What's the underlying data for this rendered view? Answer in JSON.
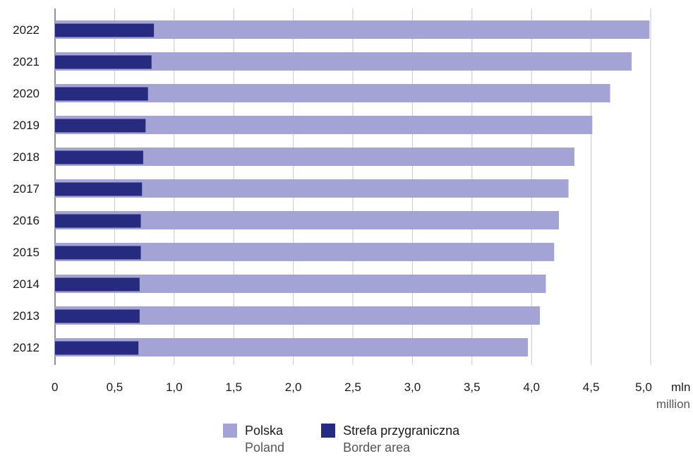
{
  "chart_data": {
    "type": "bar",
    "orientation": "horizontal",
    "categories": [
      "2022",
      "2021",
      "2020",
      "2019",
      "2018",
      "2017",
      "2016",
      "2015",
      "2014",
      "2013",
      "2012"
    ],
    "series": [
      {
        "name": "Polska",
        "name_en": "Poland",
        "color": "#a4a3d6",
        "values": [
          4.99,
          4.84,
          4.66,
          4.51,
          4.36,
          4.31,
          4.23,
          4.19,
          4.12,
          4.07,
          3.97
        ]
      },
      {
        "name": "Strefa przygraniczna",
        "name_en": "Border area",
        "color": "#262b80",
        "values": [
          0.83,
          0.81,
          0.78,
          0.76,
          0.74,
          0.73,
          0.72,
          0.72,
          0.71,
          0.71,
          0.7
        ]
      }
    ],
    "xticks": [
      "0",
      "0,5",
      "1,0",
      "1,5",
      "2,0",
      "2,5",
      "3,0",
      "3,5",
      "4,0",
      "4,5",
      "5,0"
    ],
    "xlim": [
      0,
      5.0
    ],
    "unit_pl": "mln",
    "unit_en": "million",
    "grid": "vertical",
    "legend_position": "bottom"
  }
}
